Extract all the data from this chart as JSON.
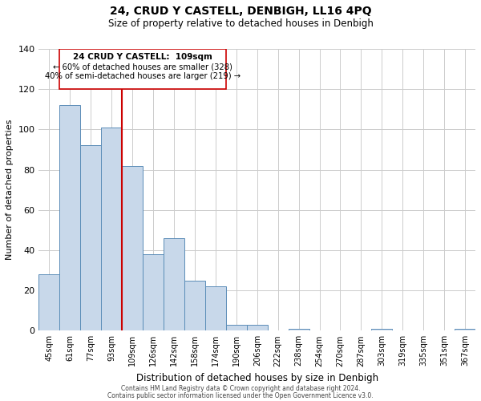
{
  "title": "24, CRUD Y CASTELL, DENBIGH, LL16 4PQ",
  "subtitle": "Size of property relative to detached houses in Denbigh",
  "xlabel": "Distribution of detached houses by size in Denbigh",
  "ylabel": "Number of detached properties",
  "bar_labels": [
    "45sqm",
    "61sqm",
    "77sqm",
    "93sqm",
    "109sqm",
    "126sqm",
    "142sqm",
    "158sqm",
    "174sqm",
    "190sqm",
    "206sqm",
    "222sqm",
    "238sqm",
    "254sqm",
    "270sqm",
    "287sqm",
    "303sqm",
    "319sqm",
    "335sqm",
    "351sqm",
    "367sqm"
  ],
  "bar_values": [
    28,
    112,
    92,
    101,
    82,
    38,
    46,
    25,
    22,
    3,
    3,
    0,
    1,
    0,
    0,
    0,
    1,
    0,
    0,
    0,
    1
  ],
  "bar_color": "#c8d8ea",
  "bar_edge_color": "#5b8db8",
  "ylim": [
    0,
    140
  ],
  "yticks": [
    0,
    20,
    40,
    60,
    80,
    100,
    120,
    140
  ],
  "marker_color": "#cc0000",
  "annotation_title": "24 CRUD Y CASTELL:  109sqm",
  "annotation_line1": "← 60% of detached houses are smaller (328)",
  "annotation_line2": "40% of semi-detached houses are larger (219) →",
  "annotation_box_color": "#ffffff",
  "annotation_box_edge": "#cc0000",
  "footer1": "Contains HM Land Registry data © Crown copyright and database right 2024.",
  "footer2": "Contains public sector information licensed under the Open Government Licence v3.0.",
  "bg_color": "#ffffff",
  "grid_color": "#cccccc"
}
